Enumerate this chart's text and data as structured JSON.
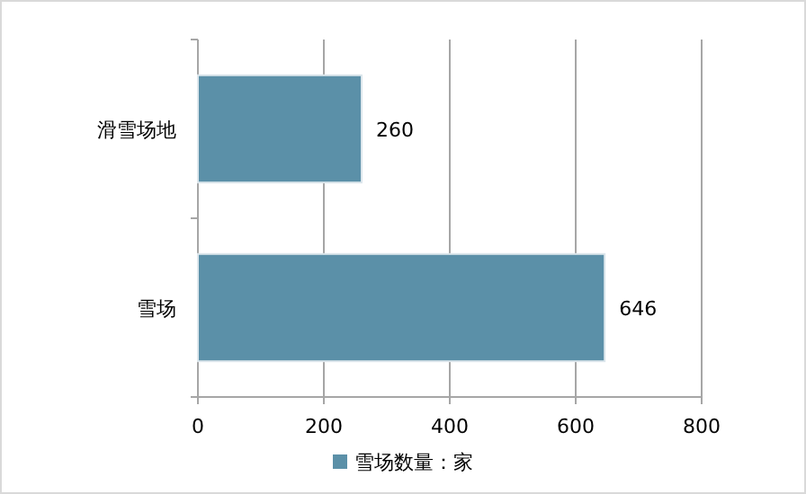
{
  "chart_data": {
    "type": "bar",
    "orientation": "horizontal",
    "categories": [
      "滑雪场地",
      "雪场"
    ],
    "series": [
      {
        "name": "雪场数量：家",
        "color": "#5b90a8",
        "values": [
          260,
          646
        ]
      }
    ],
    "xlim": [
      0,
      800
    ],
    "xticks": [
      0,
      200,
      400,
      600,
      800
    ],
    "grid": "x",
    "legend": "bottom",
    "data_labels": true
  }
}
